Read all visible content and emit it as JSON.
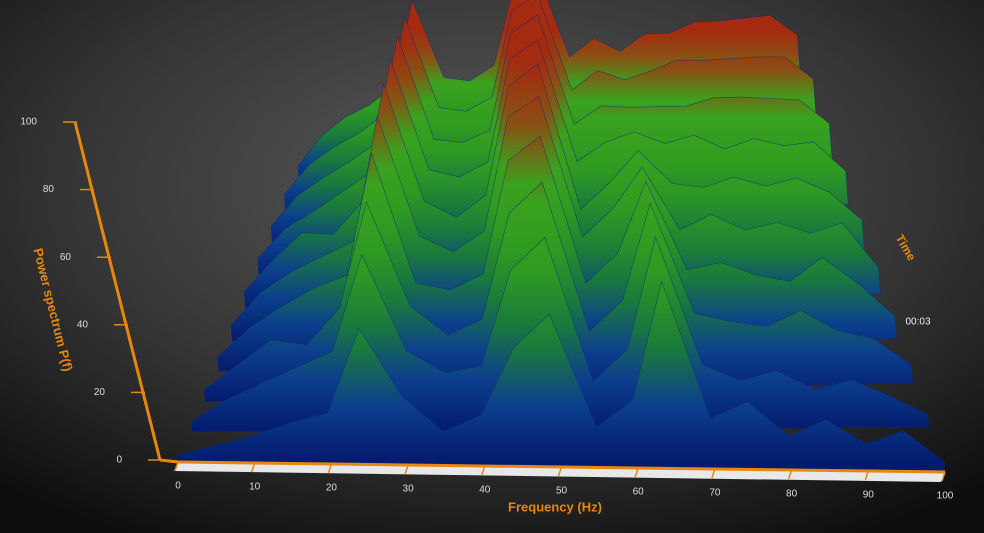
{
  "chart_data": {
    "type": "waterfall3d",
    "x_label": "Frequency (Hz)",
    "y_label": "Power spectrum P(f)",
    "z_label": "Time",
    "z_tick_label": "00:03",
    "x": [
      0,
      5,
      10,
      15,
      20,
      25,
      30,
      35,
      40,
      45,
      50,
      55,
      60,
      65,
      70,
      75,
      80,
      85,
      90,
      95,
      100
    ],
    "series": [
      {
        "values": [
          2,
          5,
          8,
          12,
          15,
          40,
          20,
          10,
          15,
          35,
          45,
          12,
          20,
          55,
          15,
          20,
          10,
          15,
          8,
          12,
          3
        ]
      },
      {
        "values": [
          3,
          10,
          15,
          20,
          25,
          55,
          25,
          18,
          20,
          50,
          60,
          15,
          25,
          60,
          20,
          15,
          18,
          12,
          15,
          10,
          4
        ]
      },
      {
        "values": [
          4,
          12,
          20,
          18,
          30,
          65,
          30,
          20,
          25,
          60,
          70,
          20,
          30,
          62,
          25,
          22,
          20,
          25,
          18,
          15,
          6
        ]
      },
      {
        "values": [
          5,
          15,
          22,
          28,
          32,
          75,
          28,
          25,
          30,
          70,
          78,
          25,
          35,
          60,
          28,
          30,
          25,
          22,
          30,
          20,
          8
        ]
      },
      {
        "values": [
          6,
          18,
          25,
          30,
          35,
          82,
          35,
          28,
          35,
          78,
          85,
          30,
          40,
          55,
          30,
          35,
          28,
          30,
          25,
          28,
          10
        ]
      },
      {
        "values": [
          8,
          20,
          30,
          28,
          40,
          88,
          38,
          30,
          38,
          82,
          90,
          28,
          38,
          50,
          35,
          32,
          35,
          30,
          32,
          25,
          12
        ]
      },
      {
        "values": [
          10,
          22,
          28,
          35,
          42,
          92,
          40,
          35,
          40,
          85,
          92,
          35,
          42,
          45,
          38,
          40,
          32,
          35,
          30,
          30,
          15
        ]
      },
      {
        "values": [
          12,
          25,
          32,
          38,
          45,
          96,
          42,
          38,
          42,
          88,
          95,
          38,
          45,
          42,
          40,
          38,
          40,
          38,
          35,
          32,
          18
        ]
      },
      {
        "values": [
          14,
          28,
          35,
          40,
          48,
          98,
          45,
          40,
          45,
          90,
          96,
          40,
          48,
          40,
          42,
          45,
          42,
          40,
          38,
          35,
          20
        ]
      },
      {
        "values": [
          15,
          30,
          38,
          42,
          50,
          100,
          48,
          42,
          48,
          92,
          98,
          42,
          50,
          38,
          45,
          42,
          45,
          42,
          40,
          38,
          22
        ]
      }
    ],
    "xlim": [
      0,
      100
    ],
    "ylim": [
      0,
      100
    ],
    "xticks": [
      0,
      10,
      20,
      30,
      40,
      50,
      60,
      70,
      80,
      90,
      100
    ],
    "yticks": [
      0,
      20,
      40,
      60,
      80,
      100
    ],
    "colors": [
      "#041a6e",
      "#0c3f8e",
      "#1a7a3c",
      "#2f9a22",
      "#3aa21e",
      "#8a5014",
      "#a42a10"
    ],
    "axis_color": "#e8870f"
  }
}
